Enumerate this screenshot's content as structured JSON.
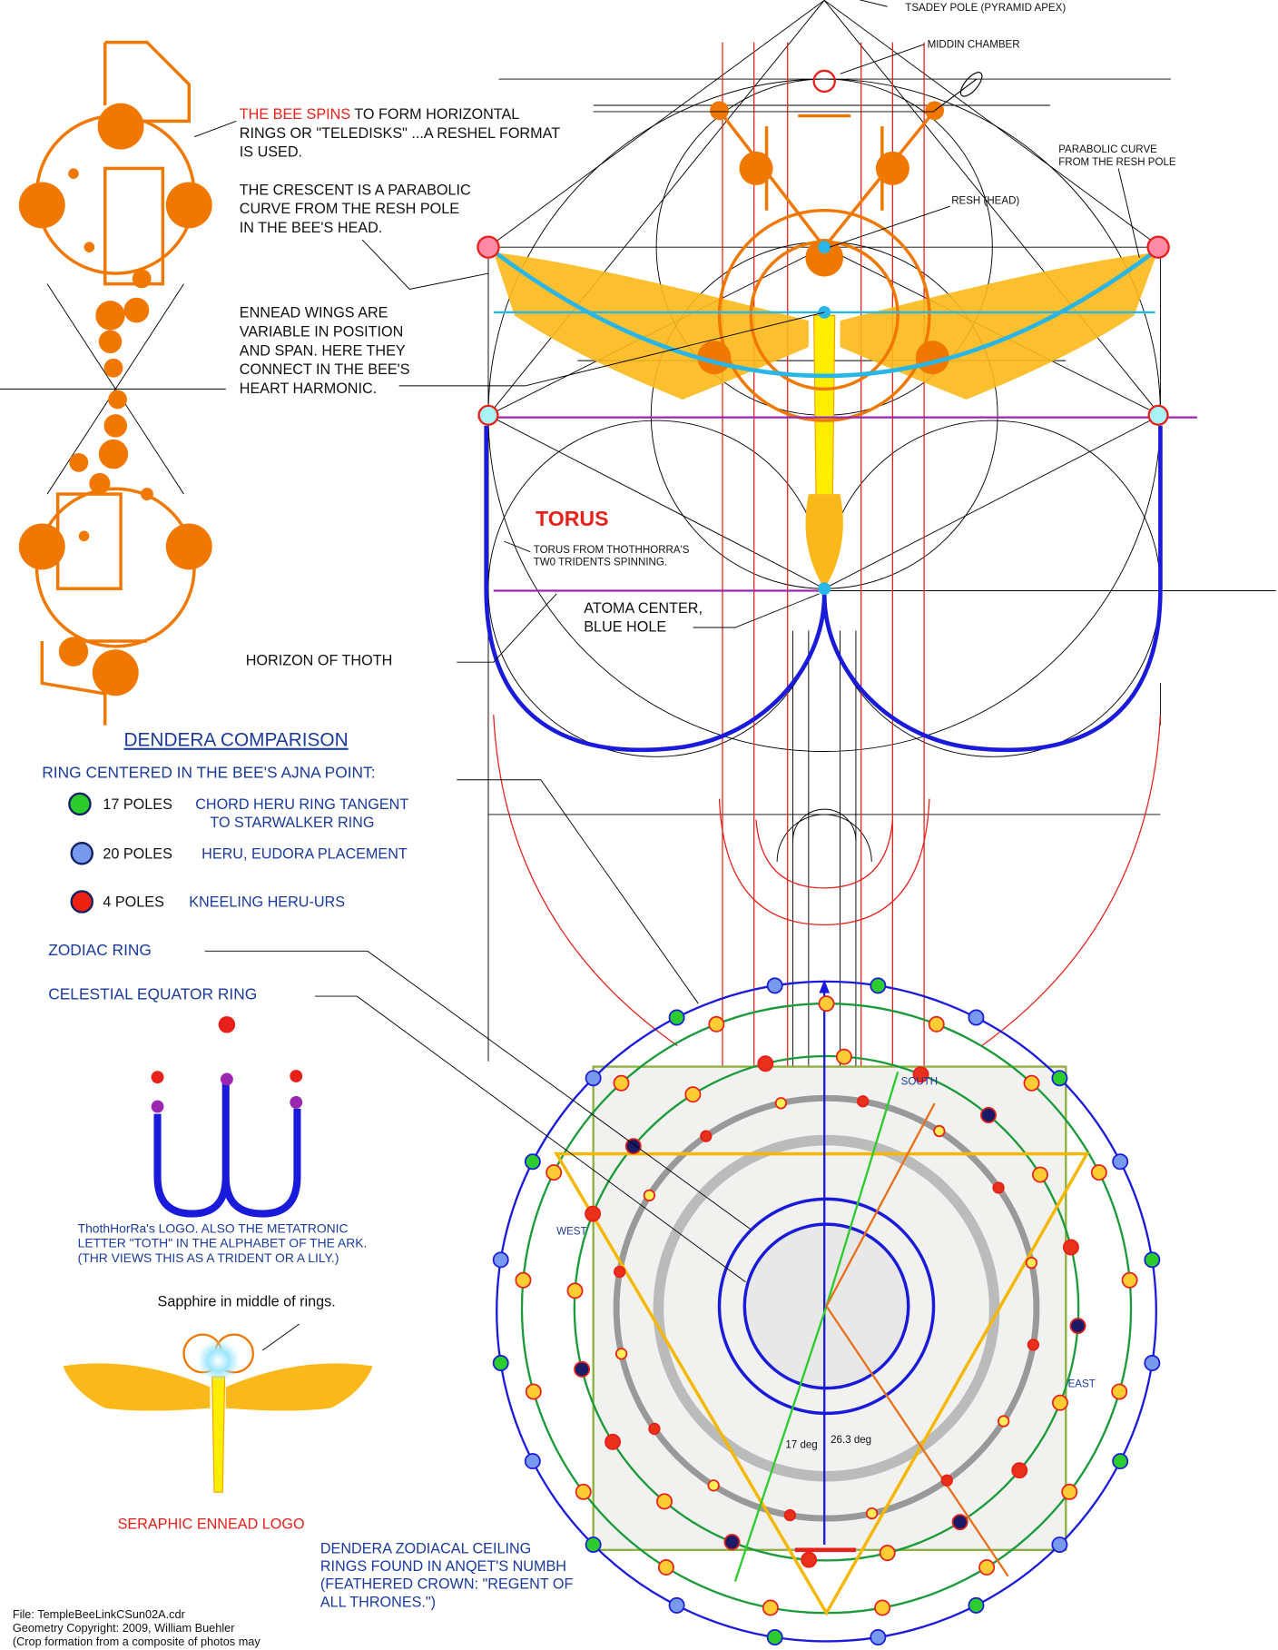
{
  "annotations": {
    "tsadey_pole": "TSADEY POLE (PYRAMID APEX)",
    "middin_chamber": "MIDDIN CHAMBER",
    "bee_spins": {
      "highlight": "THE BEE SPINS",
      "lines": [
        " TO FORM HORIZONTAL",
        "RINGS OR \"TELEDISKS\" ...A RESHEL FORMAT",
        "IS USED."
      ]
    },
    "crescent": [
      "THE CRESCENT IS A PARABOLIC",
      "CURVE FROM THE RESH POLE",
      "IN THE BEE'S HEAD."
    ],
    "parabolic_curve": [
      "PARABOLIC CURVE",
      "FROM THE RESH POLE"
    ],
    "resh_head": "RESH (HEAD)",
    "ennead_wings": [
      "ENNEAD WINGS ARE",
      "VARIABLE IN POSITION",
      "AND SPAN. HERE THEY",
      "CONNECT IN THE BEE'S",
      "HEART HARMONIC."
    ],
    "torus": "TORUS",
    "torus_from": [
      "TORUS FROM THOTHHORRA'S",
      "TW0 TRIDENTS SPINNING."
    ],
    "atoma_center": [
      "ATOMA CENTER,",
      "BLUE HOLE"
    ],
    "horizon": "HORIZON OF THOTH",
    "zodiac_ring": "ZODIAC RING",
    "celestial_equator": "CELESTIAL EQUATOR RING",
    "toth_logo": [
      "ThothHorRa's LOGO. ALSO THE METATRONIC",
      "LETTER \"TOTH\" IN THE ALPHABET OF THE ARK.",
      "(THR VIEWS THIS AS A TRIDENT OR A LILY.)"
    ],
    "sapphire": "Sapphire in middle of rings.",
    "seraphic_logo": "SERAPHIC ENNEAD LOGO",
    "dendera_ceiling": [
      "DENDERA ZODIACAL CEILING",
      "RINGS FOUND IN ANQET'S NUMBH",
      "(FEATHERED CROWN: \"REGENT OF",
      "ALL THRONES.\")"
    ]
  },
  "legend": {
    "title": "DENDERA COMPARISON",
    "subtitle": "RING CENTERED IN THE BEE'S AJNA POINT:",
    "items": [
      {
        "poles": "17 POLES",
        "text": [
          "CHORD HERU RING TANGENT",
          "TO STARWALKER RING"
        ]
      },
      {
        "poles": "20  POLES",
        "text": [
          "HERU, EUDORA  PLACEMENT"
        ]
      },
      {
        "poles": "4 POLES",
        "text": [
          "KNEELING HERU-URS"
        ]
      }
    ]
  },
  "ceiling": {
    "directions": [
      "SOUTH",
      "WEST",
      "EAST"
    ],
    "angles": [
      "17 deg",
      "26.3 deg"
    ]
  },
  "footer": [
    "File: TempleBeeLinkCSun02A.cdr",
    "Geometry Copyright: 2009, William Buehler",
    "(Crop formation from a composite of photos may"
  ]
}
